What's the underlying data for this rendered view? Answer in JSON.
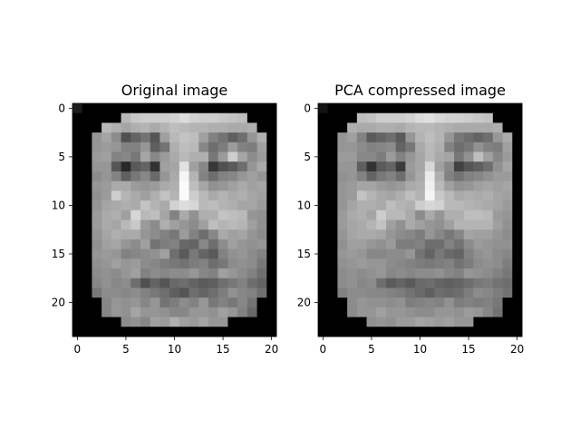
{
  "chart_data": [
    {
      "type": "heatmap",
      "title": "Original image",
      "colormap": "gray",
      "shape": [
        24,
        21
      ],
      "xticks": [
        0,
        5,
        10,
        15,
        20
      ],
      "yticks": [
        0,
        5,
        10,
        15,
        20
      ],
      "values": [
        [
          28,
          0,
          0,
          0,
          0,
          0,
          0,
          0,
          0,
          0,
          0,
          0,
          0,
          0,
          0,
          0,
          0,
          0,
          0,
          0,
          0
        ],
        [
          0,
          0,
          0,
          0,
          0,
          185,
          200,
          205,
          205,
          205,
          210,
          220,
          210,
          205,
          205,
          200,
          195,
          190,
          0,
          0,
          0
        ],
        [
          0,
          0,
          0,
          185,
          175,
          165,
          175,
          180,
          170,
          180,
          190,
          185,
          180,
          180,
          175,
          175,
          170,
          170,
          175,
          0,
          0
        ],
        [
          0,
          0,
          150,
          165,
          140,
          80,
          100,
          115,
          85,
          160,
          185,
          195,
          190,
          160,
          130,
          115,
          95,
          110,
          150,
          175,
          0
        ],
        [
          0,
          0,
          150,
          155,
          150,
          130,
          130,
          150,
          95,
          115,
          175,
          190,
          185,
          135,
          110,
          125,
          155,
          130,
          125,
          160,
          0
        ],
        [
          0,
          0,
          155,
          160,
          130,
          135,
          120,
          165,
          135,
          155,
          170,
          185,
          175,
          175,
          120,
          155,
          205,
          165,
          140,
          155,
          0
        ],
        [
          0,
          0,
          150,
          150,
          85,
          40,
          90,
          100,
          50,
          160,
          165,
          225,
          160,
          135,
          55,
          80,
          90,
          110,
          150,
          170,
          0
        ],
        [
          0,
          0,
          140,
          150,
          130,
          95,
          120,
          135,
          105,
          150,
          170,
          245,
          180,
          130,
          110,
          130,
          135,
          150,
          160,
          150,
          0
        ],
        [
          0,
          0,
          150,
          155,
          170,
          170,
          155,
          150,
          155,
          170,
          175,
          250,
          190,
          165,
          145,
          150,
          160,
          170,
          160,
          165,
          0
        ],
        [
          0,
          0,
          145,
          155,
          205,
          180,
          170,
          160,
          175,
          195,
          180,
          250,
          205,
          185,
          170,
          180,
          170,
          175,
          165,
          160,
          0
        ],
        [
          0,
          0,
          150,
          165,
          170,
          175,
          170,
          195,
          180,
          170,
          210,
          220,
          215,
          185,
          190,
          180,
          175,
          165,
          165,
          155,
          0
        ],
        [
          0,
          0,
          155,
          170,
          175,
          160,
          215,
          185,
          190,
          165,
          130,
          170,
          145,
          175,
          175,
          195,
          190,
          185,
          150,
          145,
          0
        ],
        [
          0,
          0,
          155,
          170,
          165,
          185,
          200,
          155,
          140,
          175,
          160,
          150,
          140,
          160,
          190,
          180,
          185,
          180,
          160,
          145,
          0
        ],
        [
          0,
          0,
          150,
          165,
          175,
          170,
          170,
          150,
          140,
          130,
          120,
          155,
          130,
          110,
          135,
          170,
          160,
          165,
          150,
          140,
          0
        ],
        [
          0,
          0,
          145,
          160,
          165,
          150,
          140,
          160,
          115,
          125,
          130,
          105,
          100,
          135,
          110,
          140,
          160,
          150,
          145,
          150,
          0
        ],
        [
          0,
          0,
          150,
          155,
          150,
          130,
          135,
          140,
          145,
          160,
          110,
          90,
          120,
          100,
          90,
          130,
          145,
          150,
          140,
          130,
          0
        ],
        [
          0,
          0,
          145,
          150,
          160,
          150,
          155,
          140,
          135,
          125,
          120,
          115,
          125,
          130,
          110,
          120,
          140,
          145,
          140,
          120,
          0
        ],
        [
          0,
          0,
          140,
          145,
          140,
          150,
          160,
          130,
          140,
          135,
          140,
          140,
          150,
          135,
          130,
          160,
          150,
          140,
          130,
          110,
          0
        ],
        [
          0,
          0,
          135,
          145,
          135,
          140,
          110,
          80,
          100,
          85,
          105,
          110,
          100,
          90,
          95,
          110,
          120,
          130,
          110,
          100,
          0
        ],
        [
          0,
          0,
          120,
          140,
          140,
          135,
          140,
          130,
          120,
          110,
          95,
          85,
          110,
          100,
          110,
          125,
          145,
          135,
          130,
          110,
          0
        ],
        [
          0,
          0,
          0,
          135,
          150,
          145,
          150,
          135,
          150,
          115,
          125,
          140,
          130,
          150,
          120,
          130,
          120,
          135,
          115,
          0,
          0
        ],
        [
          0,
          0,
          0,
          135,
          150,
          145,
          165,
          150,
          150,
          145,
          135,
          135,
          150,
          150,
          145,
          160,
          150,
          130,
          105,
          0,
          0
        ],
        [
          0,
          0,
          0,
          0,
          0,
          140,
          145,
          135,
          160,
          155,
          175,
          160,
          155,
          165,
          150,
          150,
          0,
          0,
          0,
          0,
          0
        ],
        [
          0,
          0,
          0,
          0,
          0,
          0,
          0,
          0,
          0,
          0,
          0,
          0,
          0,
          0,
          0,
          0,
          0,
          0,
          0,
          0,
          0
        ]
      ]
    },
    {
      "type": "heatmap",
      "title": "PCA compressed image",
      "colormap": "gray",
      "shape": [
        24,
        21
      ],
      "xticks": [
        0,
        5,
        10,
        15,
        20
      ],
      "yticks": [
        0,
        5,
        10,
        15,
        20
      ],
      "values": [
        [
          18,
          0,
          0,
          0,
          0,
          0,
          0,
          0,
          0,
          0,
          0,
          0,
          0,
          0,
          0,
          0,
          0,
          0,
          0,
          0,
          0
        ],
        [
          0,
          0,
          0,
          0,
          190,
          195,
          205,
          205,
          205,
          210,
          220,
          225,
          215,
          210,
          210,
          205,
          200,
          195,
          0,
          0,
          0
        ],
        [
          0,
          0,
          0,
          175,
          170,
          170,
          175,
          175,
          170,
          180,
          185,
          185,
          180,
          175,
          170,
          170,
          170,
          170,
          175,
          0,
          0
        ],
        [
          0,
          0,
          150,
          160,
          130,
          90,
          100,
          110,
          90,
          150,
          180,
          190,
          180,
          150,
          120,
          110,
          100,
          110,
          150,
          170,
          0
        ],
        [
          0,
          0,
          150,
          150,
          140,
          130,
          135,
          140,
          100,
          120,
          170,
          185,
          175,
          130,
          110,
          120,
          145,
          130,
          125,
          160,
          0
        ],
        [
          0,
          0,
          155,
          155,
          135,
          135,
          125,
          155,
          130,
          150,
          165,
          185,
          170,
          165,
          120,
          145,
          190,
          160,
          135,
          155,
          0
        ],
        [
          0,
          0,
          150,
          150,
          95,
          50,
          90,
          100,
          60,
          155,
          165,
          215,
          160,
          135,
          65,
          85,
          95,
          110,
          145,
          165,
          0
        ],
        [
          0,
          0,
          145,
          150,
          130,
          100,
          120,
          130,
          110,
          150,
          170,
          235,
          175,
          130,
          115,
          130,
          135,
          145,
          155,
          155,
          0
        ],
        [
          0,
          0,
          150,
          155,
          165,
          165,
          155,
          150,
          155,
          170,
          175,
          240,
          185,
          160,
          145,
          150,
          160,
          165,
          160,
          165,
          0
        ],
        [
          0,
          0,
          150,
          155,
          195,
          180,
          170,
          165,
          175,
          190,
          180,
          245,
          200,
          185,
          170,
          175,
          170,
          175,
          165,
          160,
          0
        ],
        [
          0,
          0,
          150,
          165,
          175,
          175,
          170,
          190,
          180,
          175,
          205,
          215,
          210,
          185,
          185,
          180,
          175,
          170,
          165,
          155,
          0
        ],
        [
          0,
          0,
          155,
          170,
          175,
          165,
          205,
          185,
          185,
          170,
          140,
          170,
          150,
          175,
          175,
          190,
          190,
          185,
          155,
          150,
          0
        ],
        [
          0,
          0,
          155,
          165,
          170,
          180,
          195,
          160,
          145,
          170,
          160,
          150,
          145,
          160,
          180,
          180,
          180,
          180,
          160,
          145,
          0
        ],
        [
          0,
          0,
          150,
          165,
          170,
          170,
          165,
          150,
          140,
          135,
          125,
          150,
          135,
          120,
          135,
          165,
          160,
          160,
          150,
          140,
          0
        ],
        [
          0,
          0,
          145,
          160,
          160,
          150,
          145,
          155,
          125,
          125,
          130,
          110,
          110,
          130,
          115,
          140,
          155,
          150,
          145,
          145,
          0
        ],
        [
          0,
          0,
          150,
          155,
          150,
          135,
          135,
          140,
          140,
          150,
          115,
          100,
          120,
          105,
          100,
          130,
          145,
          150,
          140,
          135,
          0
        ],
        [
          0,
          0,
          145,
          150,
          155,
          150,
          150,
          140,
          135,
          130,
          125,
          120,
          125,
          130,
          115,
          125,
          140,
          145,
          140,
          125,
          0
        ],
        [
          0,
          0,
          140,
          145,
          140,
          145,
          150,
          135,
          140,
          135,
          140,
          140,
          145,
          135,
          130,
          150,
          145,
          140,
          130,
          120,
          0
        ],
        [
          0,
          0,
          140,
          145,
          135,
          140,
          110,
          90,
          100,
          90,
          105,
          110,
          100,
          95,
          100,
          110,
          120,
          125,
          115,
          110,
          0
        ],
        [
          0,
          0,
          130,
          140,
          140,
          135,
          135,
          130,
          125,
          115,
          105,
          95,
          110,
          105,
          110,
          125,
          140,
          135,
          125,
          115,
          0
        ],
        [
          0,
          0,
          0,
          140,
          150,
          145,
          145,
          140,
          145,
          125,
          130,
          135,
          130,
          145,
          125,
          130,
          125,
          130,
          120,
          0,
          0
        ],
        [
          0,
          0,
          0,
          140,
          150,
          150,
          160,
          150,
          150,
          145,
          140,
          140,
          150,
          150,
          145,
          155,
          150,
          135,
          115,
          0,
          0
        ],
        [
          0,
          0,
          0,
          0,
          0,
          145,
          150,
          145,
          155,
          155,
          165,
          160,
          155,
          160,
          150,
          150,
          0,
          0,
          0,
          0,
          0
        ],
        [
          0,
          0,
          0,
          0,
          0,
          0,
          0,
          0,
          0,
          0,
          0,
          0,
          0,
          0,
          0,
          0,
          0,
          0,
          0,
          0,
          0
        ]
      ]
    }
  ]
}
